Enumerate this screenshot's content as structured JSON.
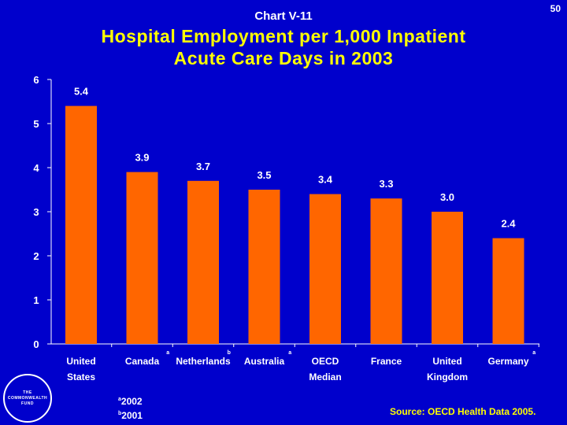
{
  "header": {
    "chart_label": "Chart V-11",
    "page_number": "50"
  },
  "chart_data": {
    "type": "bar",
    "title": "Hospital Employment per 1,000 Inpatient Acute Care Days in 2003",
    "title_lines": [
      "Hospital Employment per 1,000 Inpatient",
      "Acute Care Days in 2003"
    ],
    "categories": [
      {
        "lines": [
          "United",
          "States"
        ],
        "marker": ""
      },
      {
        "lines": [
          "Canada"
        ],
        "marker": "a"
      },
      {
        "lines": [
          "Netherlands"
        ],
        "marker": "b"
      },
      {
        "lines": [
          "Australia"
        ],
        "marker": "a"
      },
      {
        "lines": [
          "OECD",
          "Median"
        ],
        "marker": ""
      },
      {
        "lines": [
          "France"
        ],
        "marker": ""
      },
      {
        "lines": [
          "United",
          "Kingdom"
        ],
        "marker": ""
      },
      {
        "lines": [
          "Germany"
        ],
        "marker": "a"
      }
    ],
    "values": [
      5.4,
      3.9,
      3.7,
      3.5,
      3.4,
      3.3,
      3.0,
      2.4
    ],
    "value_labels": [
      "5.4",
      "3.9",
      "3.7",
      "3.5",
      "3.4",
      "3.3",
      "3.0",
      "2.4"
    ],
    "ylim": [
      0,
      6
    ],
    "yticks": [
      "0",
      "1",
      "2",
      "3",
      "4",
      "5",
      "6"
    ],
    "xlabel": "",
    "ylabel": "",
    "bar_color": "#FF6600",
    "grid": false
  },
  "footnotes": {
    "a": {
      "marker": "a",
      "text": "2002"
    },
    "b": {
      "marker": "b",
      "text": "2001"
    }
  },
  "source": "Source: OECD Health Data 2005.",
  "logo": {
    "lines": [
      "THE",
      "COMMONWEALTH",
      "FUND"
    ]
  },
  "colors": {
    "background": "#0000CC",
    "title": "#FFFF00",
    "text": "#FFFFFF",
    "bars": "#FF6600"
  }
}
